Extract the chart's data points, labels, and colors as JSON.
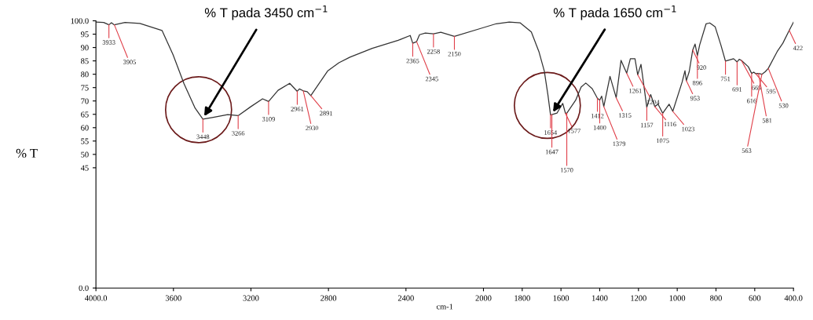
{
  "chart_data": {
    "type": "line",
    "xlabel": "cm-1",
    "ylabel": "% T",
    "xlim": [
      4000,
      400
    ],
    "xticks": [
      {
        "value": 4000,
        "label": "4000.0"
      },
      3600,
      3200,
      2800,
      2400,
      2000,
      1800,
      1600,
      1400,
      1200,
      1000,
      800,
      600,
      {
        "value": 400,
        "label": "400.0"
      }
    ],
    "ylim": [
      0,
      100
    ],
    "yticks": [
      {
        "value": 0,
        "label": "0.0"
      },
      45,
      50,
      55,
      60,
      65,
      70,
      75,
      80,
      85,
      90,
      95,
      {
        "value": 100,
        "label": "100.0"
      }
    ],
    "grid": false,
    "marker": "none",
    "line_style": "solid",
    "series": [
      {
        "color": "#333333",
        "x": [
          4000,
          3960,
          3933,
          3920,
          3905,
          3850,
          3773,
          3659,
          3602,
          3545,
          3488,
          3448,
          3400,
          3320,
          3266,
          3200,
          3140,
          3109,
          3060,
          3000,
          2961,
          2950,
          2930,
          2910,
          2891,
          2803,
          2746,
          2689,
          2574,
          2440,
          2378,
          2365,
          2345,
          2330,
          2300,
          2258,
          2220,
          2150,
          2021,
          1934,
          1867,
          1810,
          1753,
          1714,
          1686,
          1667,
          1654,
          1647,
          1620,
          1591,
          1577,
          1570,
          1524,
          1496,
          1472,
          1439,
          1412,
          1400,
          1390,
          1379,
          1347,
          1315,
          1290,
          1261,
          1242,
          1218,
          1204,
          1187,
          1157,
          1137,
          1116,
          1099,
          1075,
          1042,
          1023,
          975,
          960,
          953,
          938,
          920,
          908,
          896,
          884,
          851,
          832,
          804,
          775,
          751,
          709,
          691,
          680,
          669,
          633,
          616,
          605,
          595,
          581,
          563,
          545,
          530,
          484,
          455,
          422,
          400
        ],
        "values": [
          99.5,
          99.4,
          98.5,
          99.3,
          98.5,
          99.4,
          99.0,
          96.4,
          87.3,
          76.4,
          67.3,
          63.2,
          63.8,
          64.9,
          64.5,
          67.9,
          70.8,
          69.8,
          74.0,
          76.6,
          73.6,
          74.5,
          73.8,
          73.5,
          72.0,
          81.3,
          84.3,
          86.4,
          89.7,
          92.7,
          94.5,
          91.6,
          92.2,
          94.8,
          95.4,
          95.1,
          95.7,
          94.2,
          97.0,
          98.9,
          99.5,
          99.2,
          95.8,
          88.5,
          81.2,
          72.1,
          64.8,
          64.9,
          65.5,
          69.1,
          65.4,
          65.4,
          70.3,
          75.2,
          76.7,
          74.6,
          71.0,
          70.3,
          71.8,
          67.9,
          79.2,
          71.2,
          85.2,
          80.4,
          85.8,
          85.8,
          79.8,
          83.7,
          67.6,
          72.4,
          67.9,
          68.8,
          65.4,
          68.8,
          66.1,
          77.0,
          81.3,
          77.6,
          81.0,
          89.1,
          91.3,
          87.0,
          91.0,
          98.9,
          99.2,
          97.7,
          91.0,
          84.9,
          85.8,
          84.6,
          85.6,
          85.2,
          82.8,
          80.3,
          80.8,
          80.2,
          80.3,
          80.0,
          81.0,
          82.2,
          88.5,
          91.6,
          96.4,
          99.5
        ]
      }
    ],
    "annotations": [
      {
        "text": "% T pada 3450 cm$^{−1}$",
        "x": 3450,
        "y": 63.2
      },
      {
        "text": "% T pada 1650 cm$^{−1}$",
        "x": 1650,
        "y": 64.8
      },
      {
        "text": "3933",
        "x": 3933,
        "y": 98.5
      },
      {
        "text": "3905",
        "x": 3905,
        "y": 98.5
      },
      {
        "text": "3448",
        "x": 3448,
        "y": 63.2
      },
      {
        "text": "3266",
        "x": 3266,
        "y": 64.5
      },
      {
        "text": "3109",
        "x": 3109,
        "y": 69.8
      },
      {
        "text": "2961",
        "x": 2961,
        "y": 73.6
      },
      {
        "text": "2930",
        "x": 2930,
        "y": 73.8
      },
      {
        "text": "2891",
        "x": 2891,
        "y": 72.0
      },
      {
        "text": "2365",
        "x": 2365,
        "y": 91.6
      },
      {
        "text": "2345",
        "x": 2345,
        "y": 92.2
      },
      {
        "text": "2258",
        "x": 2258,
        "y": 95.1
      },
      {
        "text": "2150",
        "x": 2150,
        "y": 94.2
      },
      {
        "text": "1654",
        "x": 1654,
        "y": 64.8
      },
      {
        "text": "1647",
        "x": 1647,
        "y": 64.9
      },
      {
        "text": "1577",
        "x": 1577,
        "y": 65.4
      },
      {
        "text": "1570",
        "x": 1570,
        "y": 65.4
      },
      {
        "text": "1412",
        "x": 1412,
        "y": 71.0
      },
      {
        "text": "1400",
        "x": 1400,
        "y": 70.3
      },
      {
        "text": "1379",
        "x": 1379,
        "y": 67.9
      },
      {
        "text": "1315",
        "x": 1315,
        "y": 71.2
      },
      {
        "text": "1261",
        "x": 1261,
        "y": 80.4
      },
      {
        "text": "1204",
        "x": 1204,
        "y": 79.8
      },
      {
        "text": "1157",
        "x": 1157,
        "y": 67.6
      },
      {
        "text": "1116",
        "x": 1116,
        "y": 67.9
      },
      {
        "text": "1075",
        "x": 1075,
        "y": 65.4
      },
      {
        "text": "1023",
        "x": 1023,
        "y": 66.1
      },
      {
        "text": "953",
        "x": 953,
        "y": 77.6
      },
      {
        "text": "920",
        "x": 920,
        "y": 89.1
      },
      {
        "text": "896",
        "x": 896,
        "y": 87.0
      },
      {
        "text": "751",
        "x": 751,
        "y": 84.9
      },
      {
        "text": "691",
        "x": 691,
        "y": 84.6
      },
      {
        "text": "669",
        "x": 669,
        "y": 85.2
      },
      {
        "text": "616",
        "x": 616,
        "y": 80.3
      },
      {
        "text": "595",
        "x": 595,
        "y": 80.2
      },
      {
        "text": "581",
        "x": 581,
        "y": 80.3
      },
      {
        "text": "563",
        "x": 563,
        "y": 80.0
      },
      {
        "text": "530",
        "x": 530,
        "y": 82.2
      },
      {
        "text": "422",
        "x": 422,
        "y": 96.4
      }
    ]
  }
}
